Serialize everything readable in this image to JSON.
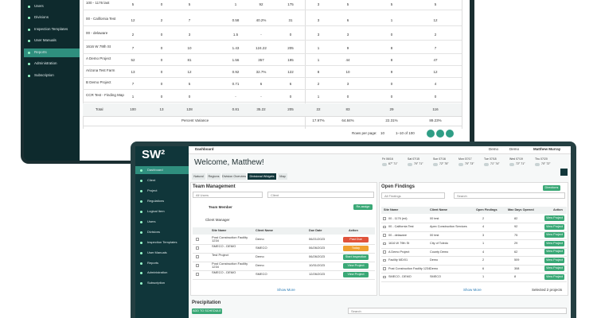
{
  "back_screen": {
    "sidebar": [
      "Users",
      "Divisions",
      "Inspection Templates",
      "User Manuals",
      "Reports",
      "Administration",
      "Subscription"
    ],
    "table": {
      "rows": [
        [
          "100 - 1176 last",
          "5",
          "0",
          "5",
          "1",
          "92",
          "175",
          "3",
          "5",
          "5",
          "5"
        ],
        [
          "00 - California Test",
          "12",
          "2",
          "7",
          "0.58",
          "40.2%",
          "31",
          "3",
          "6",
          "1",
          "12"
        ],
        [
          "00 - delaware",
          "2",
          "0",
          "3",
          "1.5",
          "-",
          "0",
          "3",
          "3",
          "0",
          "2"
        ],
        [
          "1616 W 79th St",
          "7",
          "0",
          "10",
          "1.43",
          "124.22",
          "205",
          "1",
          "9",
          "8",
          "7"
        ],
        [
          "A Demo Project",
          "52",
          "0",
          "81",
          "1.56",
          "357",
          "195",
          "1",
          "44",
          "8",
          "47"
        ],
        [
          "Arizona Test Farm",
          "13",
          "0",
          "12",
          "0.92",
          "32.7%",
          "122",
          "8",
          "10",
          "9",
          "12"
        ],
        [
          "B Demo Project",
          "7",
          "0",
          "5",
          "0.71",
          "6",
          "6",
          "2",
          "3",
          "0",
          "4"
        ],
        [
          "CCR Test - Finding Map",
          "1",
          "0",
          "0",
          "-",
          "-",
          "0",
          "1",
          "0",
          "0",
          "0"
        ]
      ],
      "total": [
        "Total",
        "100",
        "13",
        "128",
        "0.81",
        "35.22",
        "205",
        "22",
        "83",
        "29",
        "116"
      ],
      "variance_label": "Percent Variance",
      "variance": [
        "17.97%",
        "64.84%",
        "22.31%",
        "89.23%"
      ]
    },
    "pagination": {
      "rows_per_page": "Rows per page:",
      "size": "10",
      "range": "1–10 of 100"
    }
  },
  "front_screen": {
    "brand": "SW²",
    "header": {
      "title": "Dashboard",
      "org1": "Demo",
      "org2": "Demo",
      "user": "Matthew Murray"
    },
    "sidebar": [
      "Dashboard",
      "Client",
      "Project",
      "Regulations",
      "Logical Item",
      "Users",
      "Divisions",
      "Inspection Templates",
      "User Manuals",
      "Reports",
      "Administration",
      "Subscription"
    ],
    "welcome": "Welcome, Matthew!",
    "tabs": [
      "Natural",
      "Regions",
      "Division Overview",
      "Divisional Widgets",
      "Map"
    ],
    "weather": [
      {
        "day": "Fri 06/16",
        "temp": "67° 71°"
      },
      {
        "day": "Sat 07/15",
        "temp": "70° 71°"
      },
      {
        "day": "Sun 07/16",
        "temp": "72° 75°"
      },
      {
        "day": "Mon 07/17",
        "temp": "70° 73°"
      },
      {
        "day": "Tue 07/18",
        "temp": "71° 74°"
      },
      {
        "day": "Wed 07/19",
        "temp": "72° 71°"
      },
      {
        "day": "Thu 07/20",
        "temp": "70° 72°"
      }
    ],
    "team": {
      "title": "Team Management",
      "filter": "All Users",
      "search": "Client",
      "member": "Team Member",
      "reassign": "Re-assign",
      "group": "Client Manager",
      "headers": [
        "Site Name",
        "Client Name",
        "Due Date",
        "Action"
      ],
      "rows": [
        [
          "Post Construction Facility 1234",
          "Demo",
          "06/21/2023",
          "Past Due"
        ],
        [
          "SMECO - DEMO",
          "SMECO",
          "06/26/2023",
          "Today"
        ],
        [
          "Test Project",
          "Demo",
          "06/26/2023",
          "Start Inspection"
        ],
        [
          "Post Construction Facility 1234",
          "Demo",
          "10/31/2023",
          "View Project"
        ],
        [
          "SMECO - DEMO",
          "SMECO",
          "12/26/2023",
          "View Project"
        ]
      ],
      "show_more": "Show More"
    },
    "findings": {
      "title": "Open Findings",
      "button": "Directions",
      "filter": "All Findings",
      "search": "Search",
      "headers": [
        "Site Name",
        "Client Name",
        "Open Findings",
        "Max Days Opened",
        "Action"
      ],
      "rows": [
        [
          "00 - 1176 (ed)",
          "00 test",
          "2",
          "82",
          "View Project"
        ],
        [
          "00 - California Test",
          "Apex Construction Services",
          "4",
          "92",
          "View Project"
        ],
        [
          "00 - delaware",
          "00 test",
          "3",
          "75",
          "View Project"
        ],
        [
          "1616 W 79th St",
          "City of Toledo",
          "1",
          "29",
          "View Project"
        ],
        [
          "A Demo Project",
          "County Demo",
          "4",
          "62",
          "View Project"
        ],
        [
          "Facility MD/01",
          "Demo",
          "2",
          "509",
          "View Project"
        ],
        [
          "Post Construction Facility 1234",
          "Demo",
          "6",
          "308",
          "View Project"
        ],
        [
          "SMECO - DEMO",
          "SMECO",
          "1",
          "8",
          "View Project"
        ]
      ],
      "show_more": "Show More",
      "selected": "Selected 2 projects"
    },
    "precipitation": {
      "title": "Precipitation",
      "button": "ADD TO SCHEDULE",
      "search": "Search"
    }
  }
}
